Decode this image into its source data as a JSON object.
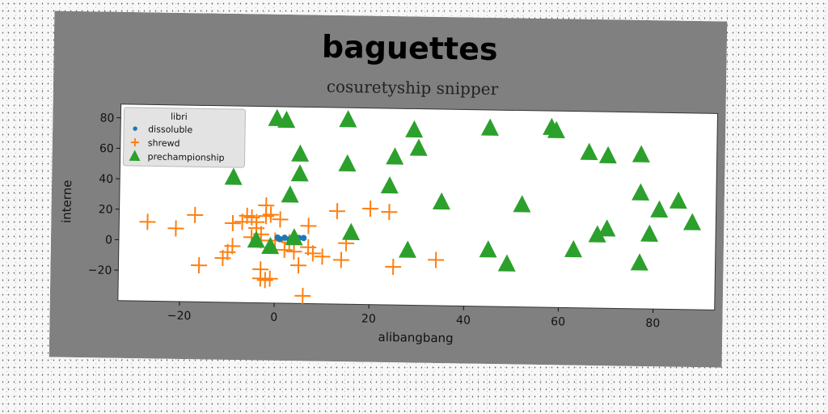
{
  "chart_data": {
    "type": "scatter",
    "title": "baguettes",
    "subtitle": "cosuretyship snipper",
    "xlabel": "alibangbang",
    "ylabel": "interne",
    "xlim": [
      -33,
      93
    ],
    "ylim": [
      -40,
      89
    ],
    "xticks": [
      -20,
      0,
      20,
      40,
      60,
      80
    ],
    "yticks": [
      -20,
      0,
      20,
      40,
      60,
      80
    ],
    "grid": false,
    "legend": {
      "title": "libri",
      "placement": "top-left"
    },
    "series": [
      {
        "name": "dissoluble",
        "marker": "circle",
        "color": "#1f77b4",
        "points": [
          [
            0.5,
            3
          ],
          [
            2,
            3
          ],
          [
            3,
            2
          ],
          [
            5,
            3
          ],
          [
            6,
            3
          ],
          [
            1,
            2
          ],
          [
            4,
            3
          ]
        ]
      },
      {
        "name": "shrewd",
        "marker": "plus",
        "color": "#ff7f0e",
        "points": [
          [
            -27,
            12
          ],
          [
            -21,
            8
          ],
          [
            -17,
            17
          ],
          [
            -16,
            -16
          ],
          [
            -11,
            -11
          ],
          [
            -10,
            -7
          ],
          [
            -9,
            12
          ],
          [
            -9,
            -3
          ],
          [
            -7,
            13
          ],
          [
            -6,
            17
          ],
          [
            -5,
            16
          ],
          [
            -4,
            13
          ],
          [
            -4,
            9
          ],
          [
            -3,
            5
          ],
          [
            -3,
            1
          ],
          [
            -2,
            17
          ],
          [
            -2,
            24
          ],
          [
            -1,
            18
          ],
          [
            -3,
            -18
          ],
          [
            -2,
            -25
          ],
          [
            -3,
            -24
          ],
          [
            -1,
            -24
          ],
          [
            1,
            15
          ],
          [
            2,
            -5
          ],
          [
            3,
            0
          ],
          [
            4,
            -6
          ],
          [
            5,
            -15
          ],
          [
            6,
            -35
          ],
          [
            7,
            -3
          ],
          [
            7,
            11
          ],
          [
            8,
            -7
          ],
          [
            10,
            -9
          ],
          [
            13,
            21
          ],
          [
            14,
            -11
          ],
          [
            15,
            0
          ],
          [
            20,
            23
          ],
          [
            24,
            21
          ],
          [
            25,
            -15
          ],
          [
            34,
            -10
          ],
          [
            -5,
            3
          ],
          [
            0,
            1
          ]
        ]
      },
      {
        "name": "prechampionship",
        "marker": "triangle",
        "color": "#2ca02c",
        "points": [
          [
            0,
            81
          ],
          [
            2,
            80
          ],
          [
            15,
            81
          ],
          [
            29,
            75
          ],
          [
            45,
            77
          ],
          [
            58,
            78
          ],
          [
            59,
            76
          ],
          [
            5,
            58
          ],
          [
            15,
            52
          ],
          [
            25,
            57
          ],
          [
            30,
            63
          ],
          [
            66,
            62
          ],
          [
            70,
            60
          ],
          [
            77,
            61
          ],
          [
            -9,
            42
          ],
          [
            5,
            45
          ],
          [
            24,
            38
          ],
          [
            3,
            31
          ],
          [
            35,
            28
          ],
          [
            52,
            27
          ],
          [
            77,
            36
          ],
          [
            81,
            25
          ],
          [
            85,
            31
          ],
          [
            88,
            17
          ],
          [
            70,
            12
          ],
          [
            68,
            8
          ],
          [
            79,
            9
          ],
          [
            16,
            7
          ],
          [
            -4,
            1
          ],
          [
            -1,
            -3
          ],
          [
            4,
            3
          ],
          [
            28,
            -4
          ],
          [
            45,
            -3
          ],
          [
            49,
            -12
          ],
          [
            63,
            -2
          ],
          [
            77,
            -10
          ]
        ]
      }
    ]
  }
}
